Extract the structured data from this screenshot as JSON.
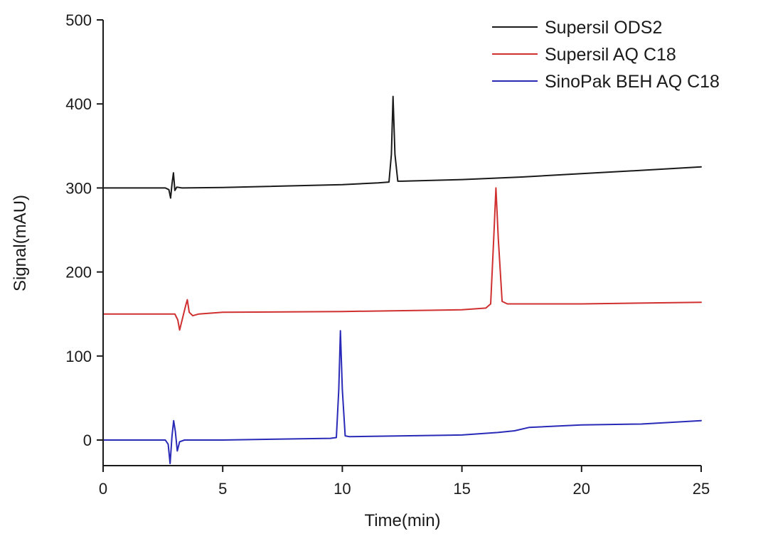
{
  "chart_data": {
    "type": "line",
    "title": "",
    "xlabel": "Time(min)",
    "ylabel": "Signal(mAU)",
    "xlim": [
      0,
      25
    ],
    "ylim": [
      -30,
      500
    ],
    "x_ticks": [
      "0",
      "5",
      "10",
      "15",
      "20",
      "25"
    ],
    "y_ticks": [
      "0",
      "100",
      "200",
      "300",
      "400",
      "500"
    ],
    "grid": false,
    "legend_position": "top-right",
    "series": [
      {
        "name": "Supersil ODS2",
        "color": "#1a1a1a",
        "points": [
          [
            0,
            300
          ],
          [
            2.6,
            300
          ],
          [
            2.75,
            298
          ],
          [
            2.82,
            288
          ],
          [
            2.88,
            305
          ],
          [
            2.94,
            318
          ],
          [
            3.0,
            297
          ],
          [
            3.08,
            301
          ],
          [
            3.3,
            300
          ],
          [
            5,
            300.5
          ],
          [
            10,
            304
          ],
          [
            11.5,
            306
          ],
          [
            11.95,
            307
          ],
          [
            12.05,
            340
          ],
          [
            12.12,
            409
          ],
          [
            12.2,
            340
          ],
          [
            12.32,
            308
          ],
          [
            12.5,
            308
          ],
          [
            15,
            310
          ],
          [
            17.5,
            313
          ],
          [
            20,
            317
          ],
          [
            22.5,
            321
          ],
          [
            25,
            325
          ]
        ]
      },
      {
        "name": "Supersil AQ C18",
        "color": "#d03030",
        "points": [
          [
            0,
            150
          ],
          [
            3.0,
            150
          ],
          [
            3.12,
            143
          ],
          [
            3.2,
            131
          ],
          [
            3.32,
            145
          ],
          [
            3.45,
            160
          ],
          [
            3.52,
            167
          ],
          [
            3.6,
            152
          ],
          [
            3.75,
            148
          ],
          [
            4.0,
            150
          ],
          [
            5,
            152
          ],
          [
            10,
            153
          ],
          [
            15,
            155
          ],
          [
            16.0,
            157
          ],
          [
            16.2,
            162
          ],
          [
            16.33,
            240
          ],
          [
            16.42,
            300
          ],
          [
            16.52,
            240
          ],
          [
            16.68,
            165
          ],
          [
            16.9,
            162
          ],
          [
            20,
            162
          ],
          [
            25,
            164
          ]
        ]
      },
      {
        "name": "SinoPak BEH AQ C18",
        "color": "#2a2ab8",
        "points": [
          [
            0,
            0
          ],
          [
            2.6,
            0
          ],
          [
            2.72,
            -5
          ],
          [
            2.8,
            -28
          ],
          [
            2.88,
            5
          ],
          [
            2.95,
            23
          ],
          [
            3.02,
            10
          ],
          [
            3.1,
            -13
          ],
          [
            3.2,
            -2
          ],
          [
            3.4,
            0
          ],
          [
            5,
            0
          ],
          [
            9.5,
            2
          ],
          [
            9.75,
            3
          ],
          [
            9.85,
            60
          ],
          [
            9.92,
            130
          ],
          [
            10.0,
            60
          ],
          [
            10.12,
            5
          ],
          [
            10.3,
            4
          ],
          [
            15,
            6
          ],
          [
            16.5,
            9
          ],
          [
            17.2,
            11
          ],
          [
            17.8,
            15
          ],
          [
            20,
            18
          ],
          [
            22.5,
            19
          ],
          [
            25,
            23
          ]
        ]
      }
    ]
  }
}
